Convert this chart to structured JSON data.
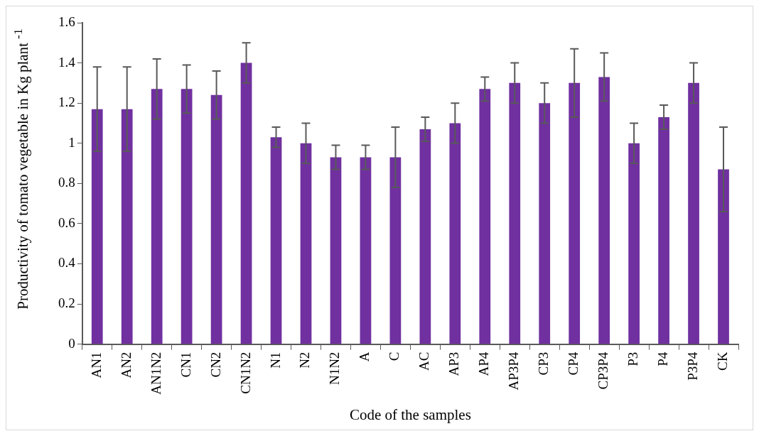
{
  "chart_data": {
    "type": "bar",
    "xlabel": "Code of the samples",
    "ylabel": "Productivity of tomato vegetable in Kg plant $^{-1}$",
    "categories": [
      "AN1",
      "AN2",
      "AN1N2",
      "CN1",
      "CN2",
      "CN1N2",
      "N1",
      "N2",
      "N1N2",
      "A",
      "C",
      "AC",
      "AP3",
      "AP4",
      "AP3P4",
      "CP3",
      "CP4",
      "CP3P4",
      "P3",
      "P4",
      "P3P4",
      "CK"
    ],
    "values": [
      1.17,
      1.17,
      1.27,
      1.27,
      1.24,
      1.4,
      1.03,
      1.0,
      0.93,
      0.93,
      0.93,
      1.07,
      1.1,
      1.27,
      1.3,
      1.2,
      1.3,
      1.33,
      1.0,
      1.13,
      1.3,
      0.87
    ],
    "errors": [
      0.21,
      0.21,
      0.15,
      0.12,
      0.12,
      0.1,
      0.05,
      0.1,
      0.06,
      0.06,
      0.15,
      0.06,
      0.1,
      0.06,
      0.1,
      0.1,
      0.17,
      0.12,
      0.1,
      0.06,
      0.1,
      0.21
    ],
    "color": "#7030a0",
    "ylim": [
      0,
      1.6
    ],
    "yticks": [
      0,
      0.2,
      0.4,
      0.6,
      0.8,
      1,
      1.2,
      1.4,
      1.6
    ],
    "grid": false,
    "legend": false
  }
}
